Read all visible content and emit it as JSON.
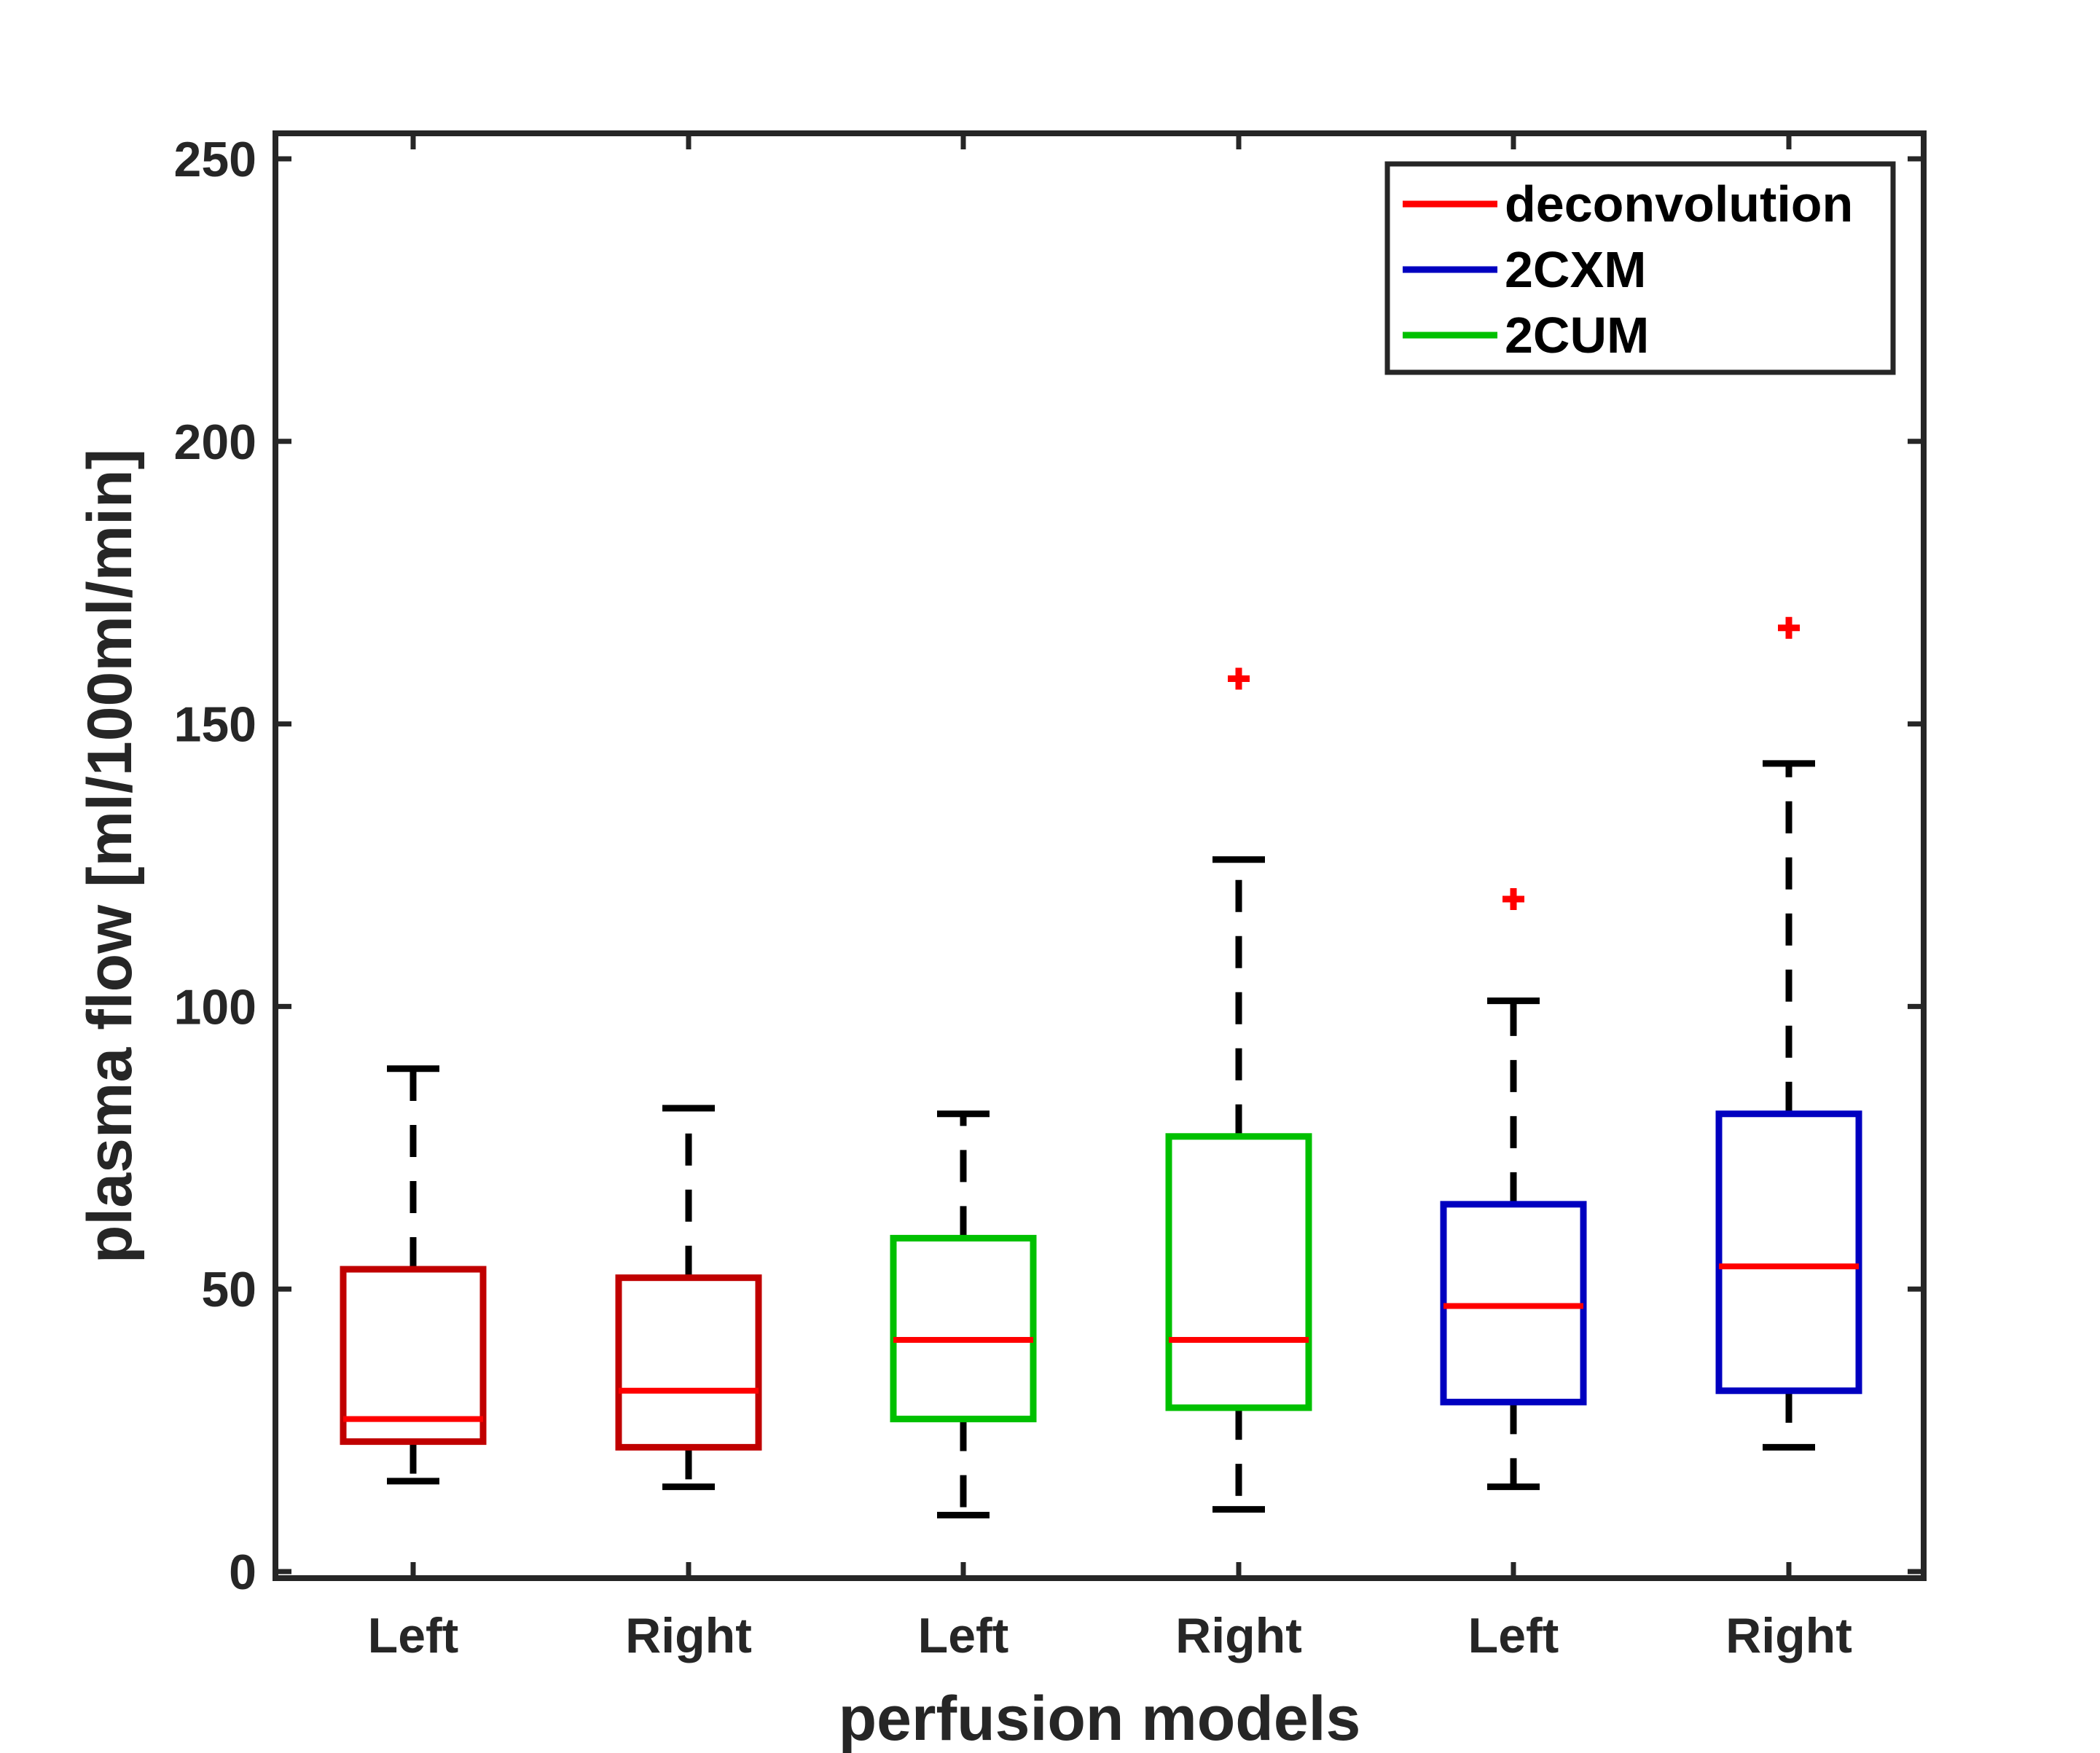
{
  "chart_data": {
    "type": "box",
    "title": "",
    "xlabel": "perfusion models",
    "ylabel": "plasma flow [ml/100ml/min]",
    "ylim": [
      0,
      255
    ],
    "yticks": [
      0,
      50,
      100,
      150,
      200,
      250
    ],
    "ytick_labels": [
      "0",
      "50",
      "100",
      "150",
      "200",
      "250"
    ],
    "categories": [
      "Left",
      "Right",
      "Left",
      "Right",
      "Left",
      "Right"
    ],
    "whisker_color": "#000000",
    "outlier_color": "#ff0000",
    "median_color": "#ff0000",
    "boxes": [
      {
        "label": "Left",
        "model": "deconvolution",
        "color": "#c00000",
        "whisker_low": 16,
        "q1": 23,
        "median": 27,
        "q3": 53.5,
        "whisker_high": 89,
        "outliers": []
      },
      {
        "label": "Right",
        "model": "deconvolution",
        "color": "#c00000",
        "whisker_low": 15,
        "q1": 22,
        "median": 32,
        "q3": 52,
        "whisker_high": 82,
        "outliers": []
      },
      {
        "label": "Left",
        "model": "2CUM",
        "color": "#00c000",
        "whisker_low": 10,
        "q1": 27,
        "median": 41,
        "q3": 59,
        "whisker_high": 81,
        "outliers": []
      },
      {
        "label": "Right",
        "model": "2CUM",
        "color": "#00c000",
        "whisker_low": 11,
        "q1": 29,
        "median": 41,
        "q3": 77,
        "whisker_high": 126,
        "outliers": [
          158
        ]
      },
      {
        "label": "Left",
        "model": "2CXM",
        "color": "#0000c0",
        "whisker_low": 15,
        "q1": 30,
        "median": 47,
        "q3": 65,
        "whisker_high": 101,
        "outliers": [
          119
        ]
      },
      {
        "label": "Right",
        "model": "2CXM",
        "color": "#0000c0",
        "whisker_low": 22,
        "q1": 32,
        "median": 54,
        "q3": 81,
        "whisker_high": 143,
        "outliers": [
          167
        ]
      }
    ],
    "legend": {
      "placement": "top-right",
      "entries": [
        {
          "label": "deconvolution",
          "color": "#ff0000"
        },
        {
          "label": "2CXM",
          "color": "#0000c0"
        },
        {
          "label": "2CUM",
          "color": "#00c000"
        }
      ]
    }
  }
}
